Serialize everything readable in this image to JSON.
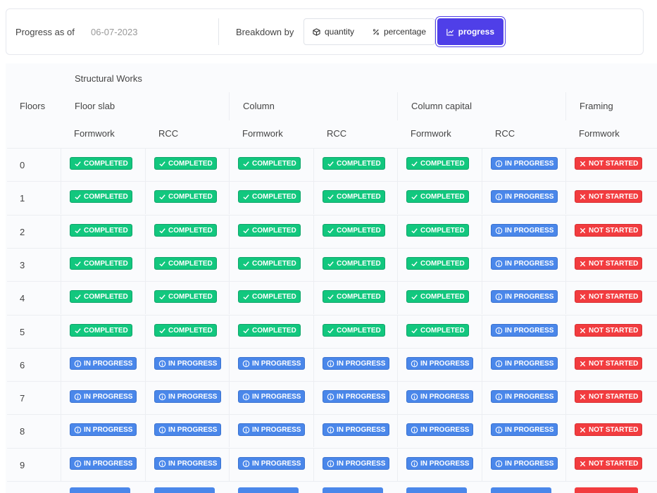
{
  "toolbar": {
    "date_label": "Progress as of",
    "date": "06-07-2023",
    "breakdown_label": "Breakdown by",
    "options": [
      "quantity",
      "percentage",
      "progress"
    ],
    "active": "progress"
  },
  "table": {
    "group_title": "Structural Works",
    "floors_header": "Floors",
    "groups": [
      {
        "name": "Floor slab",
        "columns": [
          "Formwork",
          "RCC"
        ]
      },
      {
        "name": "Column",
        "columns": [
          "Formwork",
          "RCC"
        ]
      },
      {
        "name": "Column capital",
        "columns": [
          "Formwork",
          "RCC"
        ]
      },
      {
        "name": "Framing",
        "columns": [
          "Formwork"
        ]
      }
    ],
    "rows": [
      {
        "floor": "0",
        "cells": [
          "COMPLETED",
          "COMPLETED",
          "COMPLETED",
          "COMPLETED",
          "COMPLETED",
          "IN PROGRESS",
          "NOT STARTED"
        ]
      },
      {
        "floor": "1",
        "cells": [
          "COMPLETED",
          "COMPLETED",
          "COMPLETED",
          "COMPLETED",
          "COMPLETED",
          "IN PROGRESS",
          "NOT STARTED"
        ]
      },
      {
        "floor": "2",
        "cells": [
          "COMPLETED",
          "COMPLETED",
          "COMPLETED",
          "COMPLETED",
          "COMPLETED",
          "IN PROGRESS",
          "NOT STARTED"
        ]
      },
      {
        "floor": "3",
        "cells": [
          "COMPLETED",
          "COMPLETED",
          "COMPLETED",
          "COMPLETED",
          "COMPLETED",
          "IN PROGRESS",
          "NOT STARTED"
        ]
      },
      {
        "floor": "4",
        "cells": [
          "COMPLETED",
          "COMPLETED",
          "COMPLETED",
          "COMPLETED",
          "COMPLETED",
          "IN PROGRESS",
          "NOT STARTED"
        ]
      },
      {
        "floor": "5",
        "cells": [
          "COMPLETED",
          "COMPLETED",
          "COMPLETED",
          "COMPLETED",
          "COMPLETED",
          "IN PROGRESS",
          "NOT STARTED"
        ]
      },
      {
        "floor": "6",
        "cells": [
          "IN PROGRESS",
          "IN PROGRESS",
          "IN PROGRESS",
          "IN PROGRESS",
          "IN PROGRESS",
          "IN PROGRESS",
          "NOT STARTED"
        ]
      },
      {
        "floor": "7",
        "cells": [
          "IN PROGRESS",
          "IN PROGRESS",
          "IN PROGRESS",
          "IN PROGRESS",
          "IN PROGRESS",
          "IN PROGRESS",
          "NOT STARTED"
        ]
      },
      {
        "floor": "8",
        "cells": [
          "IN PROGRESS",
          "IN PROGRESS",
          "IN PROGRESS",
          "IN PROGRESS",
          "IN PROGRESS",
          "IN PROGRESS",
          "NOT STARTED"
        ]
      },
      {
        "floor": "9",
        "cells": [
          "IN PROGRESS",
          "IN PROGRESS",
          "IN PROGRESS",
          "IN PROGRESS",
          "IN PROGRESS",
          "IN PROGRESS",
          "NOT STARTED"
        ]
      }
    ]
  }
}
